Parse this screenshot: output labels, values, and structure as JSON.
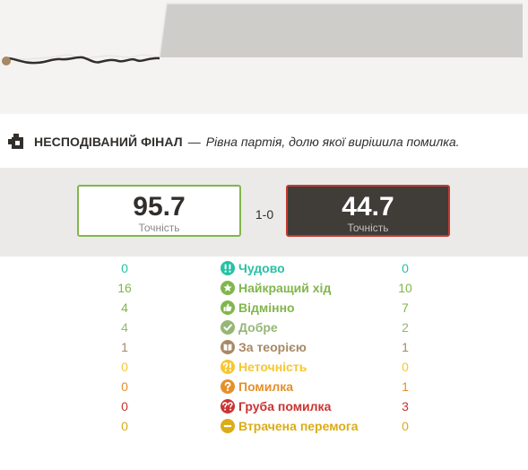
{
  "graph": {
    "bg_color": "#f4f3f2",
    "white_area_color": "#ffffff",
    "black_area_color": "#cfcdca"
  },
  "headline": {
    "icon": "puzzle-piece-icon",
    "title": "НЕСПОДІВАНИЙ ФІНАЛ",
    "dash": "—",
    "description": "Рівна партія, долю якої вирішила помилка."
  },
  "accuracy": {
    "white": {
      "value": "95.7",
      "label": "Точність",
      "border_color": "#81b64c"
    },
    "black": {
      "value": "44.7",
      "label": "Точність",
      "border_color": "#c33a32"
    },
    "result": "1-0"
  },
  "classifications": [
    {
      "key": "brilliant",
      "label": "Чудово",
      "white": "0",
      "black": "0",
      "color": "#26c2a3",
      "icon": "brilliant-double-exclamation-icon"
    },
    {
      "key": "best",
      "label": "Найкращий хід",
      "white": "16",
      "black": "10",
      "color": "#81b64c",
      "icon": "star-icon"
    },
    {
      "key": "excellent",
      "label": "Відмінно",
      "white": "4",
      "black": "7",
      "color": "#81b64c",
      "icon": "thumbs-up-icon"
    },
    {
      "key": "good",
      "label": "Добре",
      "white": "4",
      "black": "2",
      "color": "#95b776",
      "icon": "check-icon"
    },
    {
      "key": "book",
      "label": "За теорією",
      "white": "1",
      "black": "1",
      "color": "#a88865",
      "icon": "book-icon"
    },
    {
      "key": "inaccuracy",
      "label": "Неточність",
      "white": "0",
      "black": "0",
      "color": "#f7c631",
      "icon": "inaccuracy-question-exclamation-icon"
    },
    {
      "key": "mistake",
      "label": "Помилка",
      "white": "0",
      "black": "1",
      "color": "#e58f2a",
      "icon": "question-mark-icon"
    },
    {
      "key": "blunder",
      "label": "Груба помилка",
      "white": "0",
      "black": "3",
      "color": "#ca3431",
      "icon": "double-question-icon"
    },
    {
      "key": "missed_win",
      "label": "Втрачена перемога",
      "white": "0",
      "black": "0",
      "color": "#dbac16",
      "icon": "minus-circle-icon"
    }
  ]
}
